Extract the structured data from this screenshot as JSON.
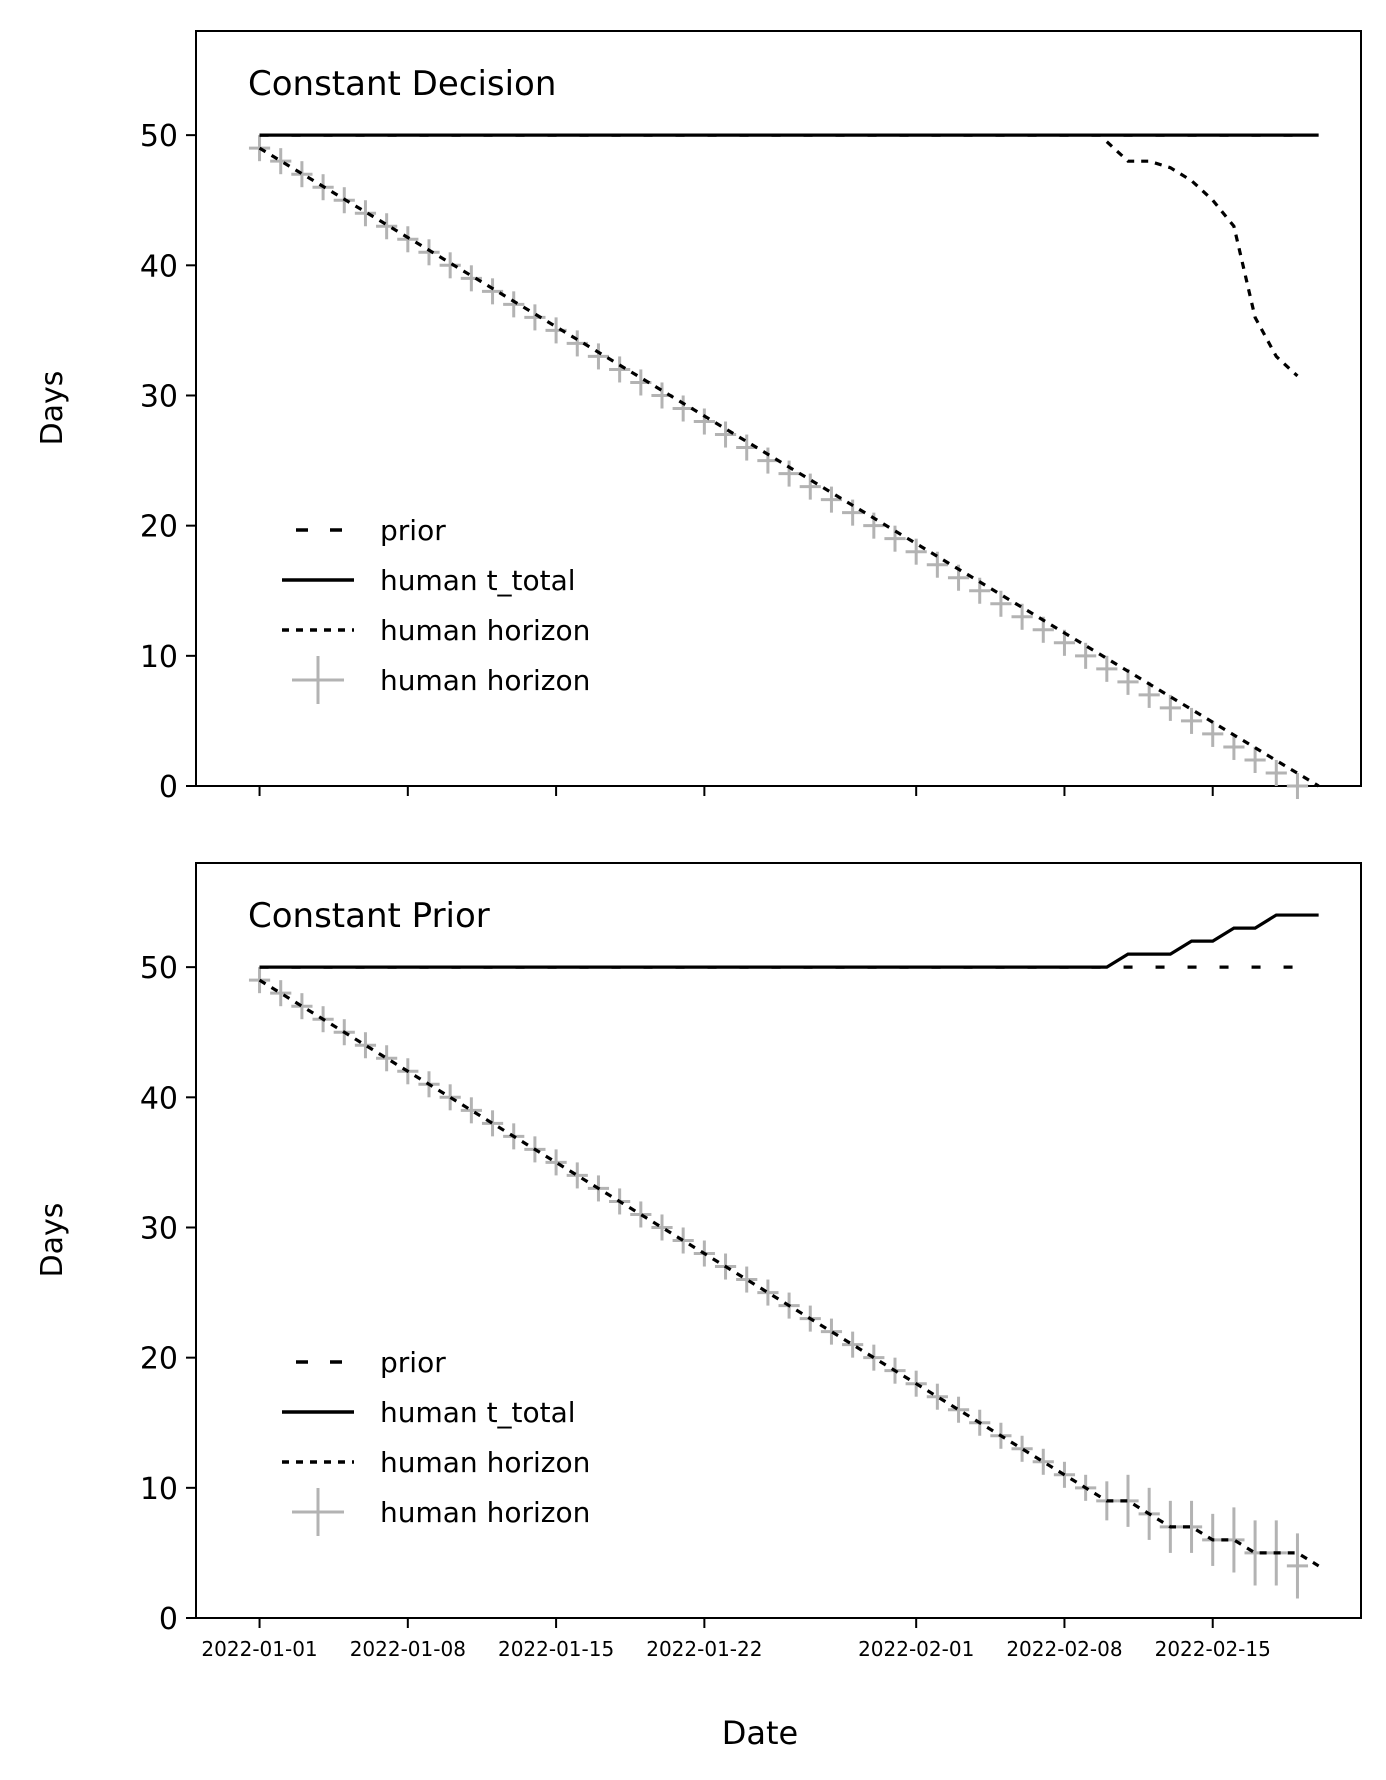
{
  "figure": {
    "xlabel": "Date"
  },
  "legend_entries": [
    {
      "label": "prior",
      "style": "dash-sparse",
      "color": "#000000"
    },
    {
      "label": "human t_total",
      "style": "solid",
      "color": "#000000"
    },
    {
      "label": "human horizon",
      "style": "dash-dense",
      "color": "#000000"
    },
    {
      "label": "human horizon",
      "style": "errorbar-marker",
      "color": "#b3b3b3"
    }
  ],
  "x_tick_labels": [
    "2022-01-01",
    "2022-01-08",
    "2022-01-15",
    "2022-01-22",
    "2022-02-01",
    "2022-02-08",
    "2022-02-15"
  ],
  "chart_data": [
    {
      "type": "line",
      "title": "Constant Decision",
      "ylabel": "Days",
      "xlabel": "",
      "x_type": "date",
      "xlim": [
        "2021-12-29",
        "2022-02-22"
      ],
      "ylim": [
        0,
        58
      ],
      "yticks": [
        0,
        10,
        20,
        30,
        40,
        50
      ],
      "xticks": [
        "2022-01-01",
        "2022-01-08",
        "2022-01-15",
        "2022-01-22",
        "2022-02-01",
        "2022-02-08",
        "2022-02-15"
      ],
      "x_tick_labels_visible": false,
      "legend_position": "lower left",
      "series": [
        {
          "name": "prior",
          "style": "dash-sparse",
          "x": [
            "2022-01-01",
            "2022-02-19"
          ],
          "values": [
            50,
            50
          ]
        },
        {
          "name": "human t_total",
          "style": "solid",
          "x": [
            "2022-01-01",
            "2022-02-20"
          ],
          "values": [
            50,
            50
          ]
        },
        {
          "name": "human horizon",
          "style": "dash-dense",
          "x": [
            "2022-01-01",
            "2022-02-20"
          ],
          "values": [
            49,
            0
          ]
        },
        {
          "name": "",
          "style": "dash-dense",
          "x": [
            "2022-02-10",
            "2022-02-11",
            "2022-02-12",
            "2022-02-13",
            "2022-02-14",
            "2022-02-15",
            "2022-02-16",
            "2022-02-17",
            "2022-02-18",
            "2022-02-19"
          ],
          "values": [
            49.5,
            48,
            48,
            47.5,
            46.5,
            45,
            43,
            36,
            33,
            31.5
          ]
        },
        {
          "name": "human horizon",
          "style": "errorbar",
          "x_start": "2022-01-01",
          "x_step_days": 1,
          "values": [
            49,
            48,
            47,
            46,
            45,
            44,
            43,
            42,
            41,
            40,
            39,
            38,
            37,
            36,
            35,
            34,
            33,
            32,
            31,
            30,
            29,
            28,
            27,
            26,
            25,
            24,
            23,
            22,
            21,
            20,
            19,
            18,
            17,
            16,
            15,
            14,
            13,
            12,
            11,
            10,
            9,
            8,
            7,
            6,
            5,
            4,
            3,
            2,
            1,
            0
          ],
          "yerr": [
            1,
            1,
            1,
            1,
            1,
            1,
            1,
            1,
            1,
            1,
            1,
            1,
            1,
            1,
            1,
            1,
            1,
            1,
            1,
            1,
            1,
            1,
            1,
            1,
            1,
            1,
            1,
            1,
            1,
            1,
            1,
            1,
            1,
            1,
            1,
            1,
            1,
            1,
            1,
            1,
            1,
            1,
            1,
            1,
            1,
            1,
            1,
            1,
            1,
            1
          ]
        }
      ]
    },
    {
      "type": "line",
      "title": "Constant Prior",
      "ylabel": "Days",
      "xlabel": "Date",
      "x_type": "date",
      "xlim": [
        "2021-12-29",
        "2022-02-22"
      ],
      "ylim": [
        0,
        58
      ],
      "yticks": [
        0,
        10,
        20,
        30,
        40,
        50
      ],
      "xticks": [
        "2022-01-01",
        "2022-01-08",
        "2022-01-15",
        "2022-01-22",
        "2022-02-01",
        "2022-02-08",
        "2022-02-15"
      ],
      "x_tick_labels_visible": true,
      "legend_position": "lower left",
      "series": [
        {
          "name": "prior",
          "style": "dash-sparse",
          "x": [
            "2022-01-01",
            "2022-02-19"
          ],
          "values": [
            50,
            50
          ]
        },
        {
          "name": "human t_total",
          "style": "solid",
          "x": [
            "2022-01-01",
            "2022-02-10",
            "2022-02-11",
            "2022-02-12",
            "2022-02-13",
            "2022-02-14",
            "2022-02-15",
            "2022-02-16",
            "2022-02-17",
            "2022-02-18",
            "2022-02-19",
            "2022-02-20"
          ],
          "values": [
            50,
            50,
            51,
            51,
            51,
            52,
            52,
            53,
            53,
            54,
            54,
            54
          ]
        },
        {
          "name": "human horizon",
          "style": "dash-dense",
          "x": [
            "2022-01-01",
            "2022-02-08",
            "2022-02-10",
            "2022-02-11",
            "2022-02-13",
            "2022-02-14",
            "2022-02-15",
            "2022-02-16",
            "2022-02-17",
            "2022-02-18",
            "2022-02-19",
            "2022-02-20"
          ],
          "values": [
            49,
            11,
            9,
            9,
            7,
            7,
            6,
            6,
            5,
            5,
            5,
            4
          ]
        },
        {
          "name": "human horizon",
          "style": "errorbar",
          "x_start": "2022-01-01",
          "x_step_days": 1,
          "values": [
            49,
            48,
            47,
            46,
            45,
            44,
            43,
            42,
            41,
            40,
            39,
            38,
            37,
            36,
            35,
            34,
            33,
            32,
            31,
            30,
            29,
            28,
            27,
            26,
            25,
            24,
            23,
            22,
            21,
            20,
            19,
            18,
            17,
            16,
            15,
            14,
            13,
            12,
            11,
            10,
            9,
            9,
            8,
            7,
            7,
            6,
            6,
            5,
            5,
            4
          ],
          "yerr": [
            1,
            1,
            1,
            1,
            1,
            1,
            1,
            1,
            1,
            1,
            1,
            1,
            1,
            1,
            1,
            1,
            1,
            1,
            1,
            1,
            1,
            1,
            1,
            1,
            1,
            1,
            1,
            1,
            1,
            1,
            1,
            1,
            1,
            1,
            1,
            1,
            1,
            1,
            1,
            1,
            1.5,
            2,
            2,
            2,
            2,
            2,
            2.5,
            2.5,
            2.5,
            2.5
          ]
        }
      ]
    }
  ]
}
